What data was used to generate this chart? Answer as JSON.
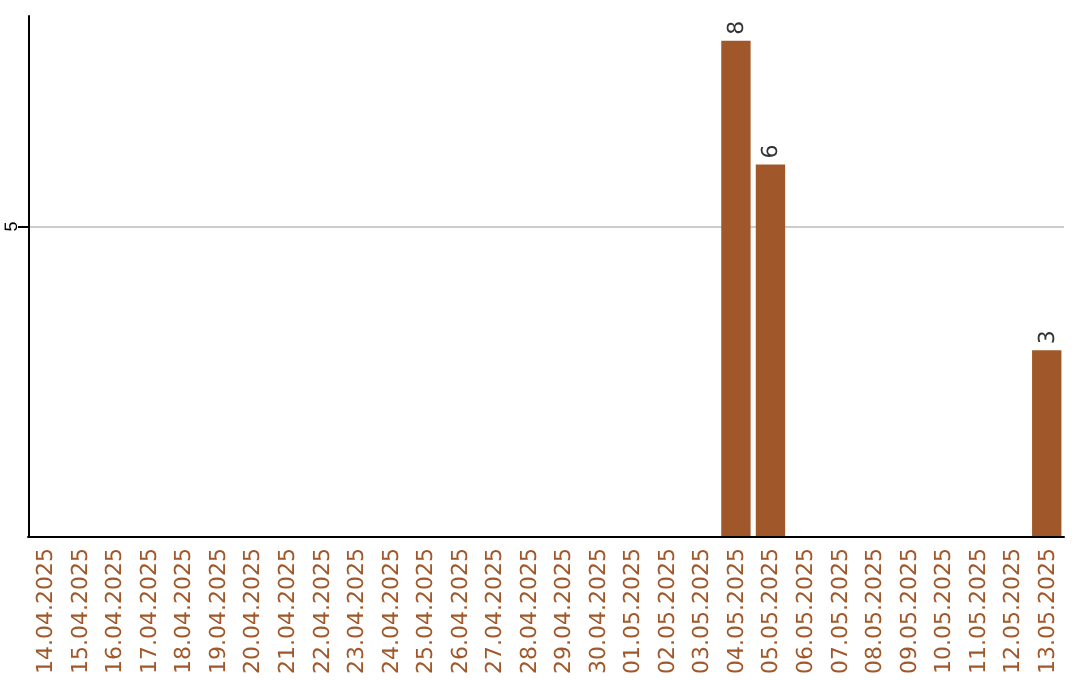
{
  "chart_data": {
    "type": "bar",
    "categories": [
      "14.04.2025",
      "15.04.2025",
      "16.04.2025",
      "17.04.2025",
      "18.04.2025",
      "19.04.2025",
      "20.04.2025",
      "21.04.2025",
      "22.04.2025",
      "23.04.2025",
      "24.04.2025",
      "25.04.2025",
      "26.04.2025",
      "27.04.2025",
      "28.04.2025",
      "29.04.2025",
      "30.04.2025",
      "01.05.2025",
      "02.05.2025",
      "03.05.2025",
      "04.05.2025",
      "05.05.2025",
      "06.05.2025",
      "07.05.2025",
      "08.05.2025",
      "09.05.2025",
      "10.05.2025",
      "11.05.2025",
      "12.05.2025",
      "13.05.2025"
    ],
    "values": [
      null,
      null,
      null,
      null,
      null,
      null,
      null,
      null,
      null,
      null,
      null,
      null,
      null,
      null,
      null,
      null,
      null,
      null,
      null,
      null,
      8,
      6,
      null,
      null,
      null,
      null,
      null,
      null,
      null,
      3
    ],
    "data_labels": true,
    "color": "#a0582a",
    "ylim": [
      0,
      8.4
    ],
    "yticks": [
      5
    ],
    "grid": "y"
  }
}
